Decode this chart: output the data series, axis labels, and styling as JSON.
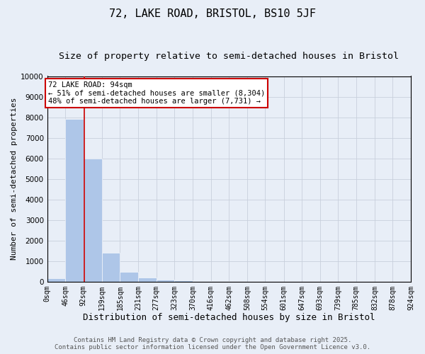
{
  "title": "72, LAKE ROAD, BRISTOL, BS10 5JF",
  "subtitle": "Size of property relative to semi-detached houses in Bristol",
  "xlabel": "Distribution of semi-detached houses by size in Bristol",
  "ylabel": "Number of semi-detached properties",
  "bar_values": [
    150,
    7900,
    6000,
    1400,
    480,
    200,
    100,
    50,
    20,
    10,
    5,
    3,
    2,
    1,
    1,
    1,
    1,
    1,
    0,
    0
  ],
  "bin_edges": [
    0,
    46,
    92,
    139,
    185,
    231,
    277,
    323,
    370,
    416,
    462,
    508,
    554,
    601,
    647,
    693,
    739,
    785,
    832,
    878,
    924
  ],
  "tick_labels": [
    "0sqm",
    "46sqm",
    "92sqm",
    "139sqm",
    "185sqm",
    "231sqm",
    "277sqm",
    "323sqm",
    "370sqm",
    "416sqm",
    "462sqm",
    "508sqm",
    "554sqm",
    "601sqm",
    "647sqm",
    "693sqm",
    "739sqm",
    "785sqm",
    "832sqm",
    "878sqm",
    "924sqm"
  ],
  "bar_color": "#aec6e8",
  "property_line_x": 94,
  "property_line_color": "#cc0000",
  "annotation_text": "72 LAKE ROAD: 94sqm\n← 51% of semi-detached houses are smaller (8,304)\n48% of semi-detached houses are larger (7,731) →",
  "annotation_box_color": "#cc0000",
  "annotation_bg": "#ffffff",
  "ylim": [
    0,
    10000
  ],
  "yticks": [
    0,
    1000,
    2000,
    3000,
    4000,
    5000,
    6000,
    7000,
    8000,
    9000,
    10000
  ],
  "grid_color": "#c8d0dc",
  "background_color": "#e8eef7",
  "plot_bg_color": "#e8eef7",
  "footer_line1": "Contains HM Land Registry data © Crown copyright and database right 2025.",
  "footer_line2": "Contains public sector information licensed under the Open Government Licence v3.0.",
  "title_fontsize": 11,
  "subtitle_fontsize": 9.5,
  "xlabel_fontsize": 9,
  "ylabel_fontsize": 8,
  "tick_fontsize": 7,
  "annotation_fontsize": 7.5,
  "footer_fontsize": 6.5
}
